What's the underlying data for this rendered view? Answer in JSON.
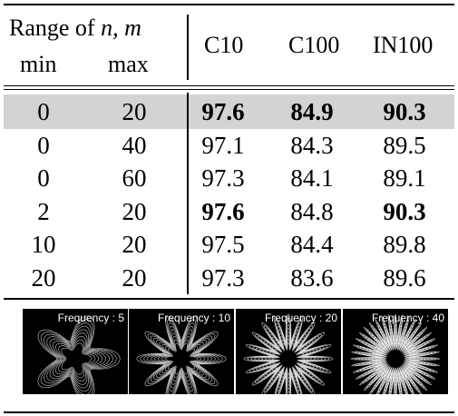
{
  "header": {
    "range_prefix": "Range of ",
    "range_vars": "n, m",
    "min_label": "min",
    "max_label": "max",
    "columns": [
      "C10",
      "C100",
      "IN100"
    ]
  },
  "rows": [
    {
      "min": "0",
      "max": "20",
      "c10": "97.6",
      "c100": "84.9",
      "in100": "90.3",
      "highlighted": true,
      "bold": [
        "c10",
        "c100",
        "in100"
      ]
    },
    {
      "min": "0",
      "max": "40",
      "c10": "97.1",
      "c100": "84.3",
      "in100": "89.5",
      "highlighted": false,
      "bold": []
    },
    {
      "min": "0",
      "max": "60",
      "c10": "97.3",
      "c100": "84.1",
      "in100": "89.1",
      "highlighted": false,
      "bold": []
    },
    {
      "min": "2",
      "max": "20",
      "c10": "97.6",
      "c100": "84.8",
      "in100": "90.3",
      "highlighted": false,
      "bold": [
        "c10",
        "in100"
      ]
    },
    {
      "min": "10",
      "max": "20",
      "c10": "97.5",
      "c100": "84.4",
      "in100": "89.8",
      "highlighted": false,
      "bold": []
    },
    {
      "min": "20",
      "max": "20",
      "c10": "97.3",
      "c100": "83.6",
      "in100": "89.6",
      "highlighted": false,
      "bold": []
    }
  ],
  "figures": [
    {
      "label": "Frequency : 5",
      "frequency": 5
    },
    {
      "label": "Frequency : 10",
      "frequency": 10
    },
    {
      "label": "Frequency : 20",
      "frequency": 20
    },
    {
      "label": "Frequency : 40",
      "frequency": 40
    }
  ],
  "colors": {
    "highlight": "#d3d3d3",
    "figure_bg": "#000000",
    "figure_lines": "#e6e6e6"
  }
}
